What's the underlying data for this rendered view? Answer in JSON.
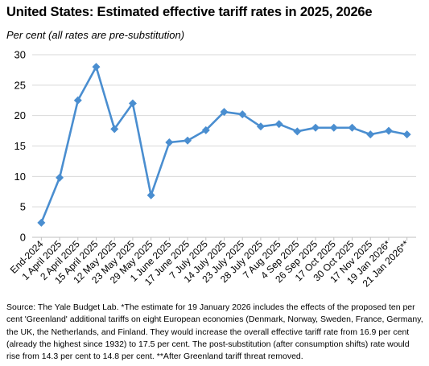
{
  "title": "United States: Estimated effective tariff rates in 2025, 2026e",
  "subtitle": "Per cent (all rates are pre-substitution)",
  "source": "Source: The Yale Budget Lab. *The estimate for 19 January 2026 includes the effects of the proposed ten per cent 'Greenland' additional tariffs on eight European economies (Denmark, Norway, Sweden, France, Germany, the UK, the Netherlands, and Finland. They would increase the overall effective tariff rate from 16.9 per cent (already the highest since 1932) to 17.5 per cent. The post-substitution (after consumption shifts) rate would rise from  14.3 per cent to 14.8 per cent. **After Greenland tariff threat removed.",
  "chart_data": {
    "type": "line",
    "title": "United States: Estimated effective tariff rates in 2025, 2026e",
    "subtitle": "Per cent (all rates are pre-substitution)",
    "xlabel": "",
    "ylabel": "",
    "ylim": [
      0,
      30
    ],
    "yticks": [
      0,
      5,
      10,
      15,
      20,
      25,
      30
    ],
    "grid": true,
    "legend": "none",
    "color": "#4a8ed0",
    "categories": [
      "End-2024",
      "1 April 2025",
      "2 April 2025",
      "15 April 2025",
      "12 May 2025",
      "23 May 2025",
      "29 May 2025",
      "1 June 2025",
      "17 June 2025",
      "7 July 2025",
      "14 July 2025",
      "23 July 2025",
      "28 July 2025",
      "7 Aug 2025",
      "4 Sep 2025",
      "26 Sep 2025",
      "17 Oct 2025",
      "30 Oct 2025",
      "17 Nov 2025",
      "19 Jan 2026*",
      "21 Jan 2026**"
    ],
    "series": [
      {
        "values": [
          2.4,
          9.8,
          22.5,
          28.0,
          17.8,
          22.0,
          6.9,
          15.6,
          15.9,
          17.6,
          20.6,
          20.2,
          18.2,
          18.6,
          17.4,
          18.0,
          18.0,
          18.0,
          16.9,
          17.5,
          16.9
        ]
      }
    ]
  }
}
